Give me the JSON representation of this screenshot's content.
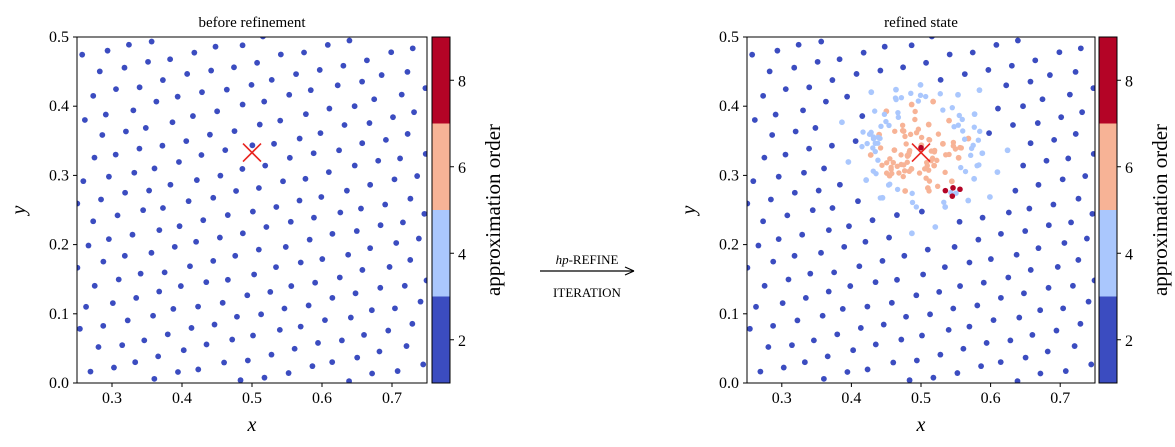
{
  "arrow_label": {
    "top_prefix": "hp",
    "top_suffix": "-REFINE",
    "bottom": "ITERATION"
  },
  "chart_data": [
    {
      "type": "scatter",
      "title": "before refinement",
      "xlabel": "x",
      "ylabel": "y",
      "xlim": [
        0.25,
        0.75
      ],
      "ylim": [
        0.0,
        0.5
      ],
      "xticks": [
        "0.3",
        "0.4",
        "0.5",
        "0.6",
        "0.7"
      ],
      "yticks": [
        "0.0",
        "0.1",
        "0.2",
        "0.3",
        "0.4",
        "0.5"
      ],
      "marker": {
        "x": 0.5,
        "y": 0.333,
        "symbol": "cross",
        "color": "#e8241f"
      },
      "colorbar": {
        "label": "approximation order",
        "range": [
          1,
          9
        ],
        "ticks": [
          "2",
          "4",
          "6",
          "8"
        ],
        "bands": [
          {
            "from": 1,
            "to": 3,
            "color": "#3b4cc0"
          },
          {
            "from": 3,
            "to": 5,
            "color": "#aac7fd"
          },
          {
            "from": 5,
            "to": 7,
            "color": "#f7b396"
          },
          {
            "from": 7,
            "to": 9,
            "color": "#b40426"
          }
        ]
      },
      "points": {
        "description": "quasi-uniform node cloud, all order 2",
        "order": 2
      }
    },
    {
      "type": "scatter",
      "title": "refined state",
      "xlabel": "x",
      "ylabel": "y",
      "xlim": [
        0.25,
        0.75
      ],
      "ylim": [
        0.0,
        0.5
      ],
      "xticks": [
        "0.3",
        "0.4",
        "0.5",
        "0.6",
        "0.7"
      ],
      "yticks": [
        "0.0",
        "0.1",
        "0.2",
        "0.3",
        "0.4",
        "0.5"
      ],
      "marker": {
        "x": 0.5,
        "y": 0.333,
        "symbol": "cross",
        "color": "#e8241f"
      },
      "colorbar": {
        "label": "approximation order",
        "range": [
          1,
          9
        ],
        "ticks": [
          "2",
          "4",
          "6",
          "8"
        ],
        "bands": [
          {
            "from": 1,
            "to": 3,
            "color": "#3b4cc0"
          },
          {
            "from": 3,
            "to": 5,
            "color": "#aac7fd"
          },
          {
            "from": 5,
            "to": 7,
            "color": "#f7b396"
          },
          {
            "from": 7,
            "to": 9,
            "color": "#b40426"
          }
        ]
      },
      "points": {
        "description": "node cloud refined around (0.5, 0.333); orders 2/4/6/8",
        "order_values": [
          2,
          4,
          6,
          8
        ]
      },
      "high_order_points": [
        {
          "x": 0.535,
          "y": 0.278,
          "order": 8
        },
        {
          "x": 0.546,
          "y": 0.282,
          "order": 8
        },
        {
          "x": 0.556,
          "y": 0.28,
          "order": 8
        },
        {
          "x": 0.545,
          "y": 0.27,
          "order": 8
        },
        {
          "x": 0.5,
          "y": 0.34,
          "order": 8
        }
      ]
    }
  ]
}
